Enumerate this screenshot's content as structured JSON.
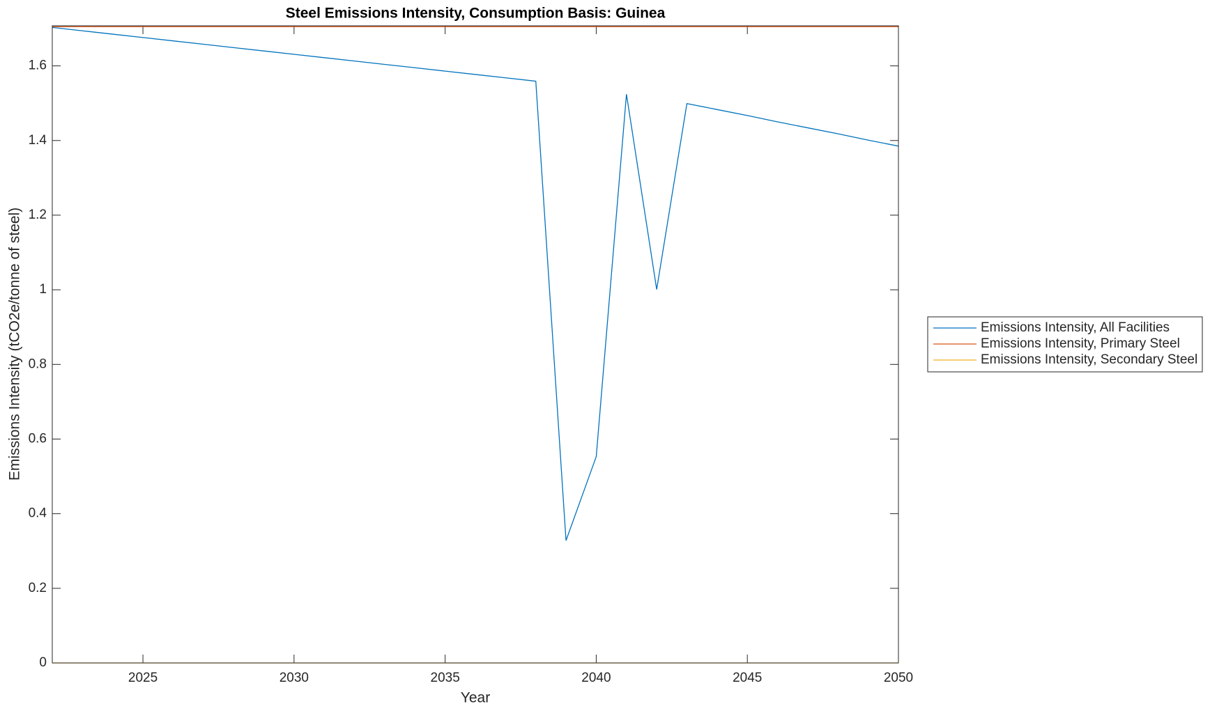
{
  "chart_data": {
    "type": "line",
    "title": "Steel Emissions Intensity, Consumption Basis: Guinea",
    "x_label": "Year",
    "y_label": "Emissions Intensity (tCO2e/tonne of steel)",
    "x": [
      2022,
      2023,
      2024,
      2025,
      2026,
      2027,
      2028,
      2029,
      2030,
      2031,
      2032,
      2033,
      2034,
      2035,
      2036,
      2037,
      2038,
      2039,
      2040,
      2041,
      2042,
      2043,
      2044,
      2045,
      2046,
      2047,
      2048,
      2049,
      2050
    ],
    "series": [
      {
        "name": "Emissions Intensity, All Facilities",
        "color": "#0072BD",
        "values": [
          1.703,
          1.694,
          1.685,
          1.676,
          1.667,
          1.658,
          1.649,
          1.64,
          1.631,
          1.622,
          1.613,
          1.604,
          1.595,
          1.586,
          1.577,
          1.568,
          1.559,
          0.328,
          0.553,
          1.524,
          1.001,
          1.499,
          1.483,
          1.467,
          1.45,
          1.434,
          1.418,
          1.401,
          1.385
        ]
      },
      {
        "name": "Emissions Intensity, Primary Steel",
        "color": "#D95319",
        "values": [
          1.705,
          1.705,
          1.705,
          1.705,
          1.705,
          1.705,
          1.705,
          1.705,
          1.705,
          1.705,
          1.705,
          1.705,
          1.705,
          1.705,
          1.705,
          1.705,
          1.705,
          1.705,
          1.705,
          1.705,
          1.705,
          1.705,
          1.705,
          1.705,
          1.705,
          1.705,
          1.705,
          1.705,
          1.705
        ]
      },
      {
        "name": "Emissions Intensity, Secondary Steel",
        "color": "#EDB120",
        "values": [
          0,
          0,
          0,
          0,
          0,
          0,
          0,
          0,
          0,
          0,
          0,
          0,
          0,
          0,
          0,
          0,
          0,
          0,
          0,
          0,
          0,
          0,
          0,
          0,
          0,
          0,
          0,
          0,
          0
        ]
      }
    ],
    "xlim": [
      2022,
      2050
    ],
    "ylim": [
      0,
      1.7075
    ],
    "xticks": [
      2025,
      2030,
      2035,
      2040,
      2045,
      2050
    ],
    "yticks": [
      0,
      0.2,
      0.4,
      0.6,
      0.8,
      1,
      1.2,
      1.4,
      1.6
    ],
    "legend": "outside-right"
  }
}
